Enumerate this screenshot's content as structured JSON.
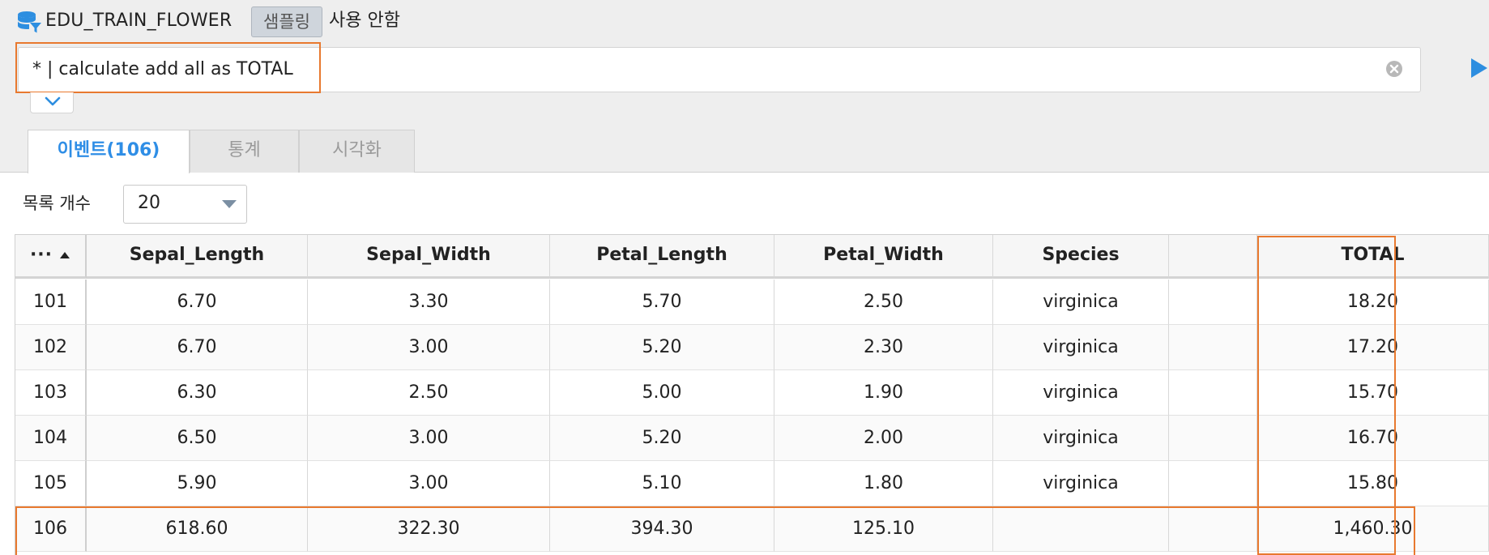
{
  "header": {
    "dataset_name": "EDU_TRAIN_FLOWER",
    "sampling_button": "샘플링",
    "sampling_status": "사용 안함",
    "icon": "database-icon"
  },
  "query": {
    "text": "* | calculate add all as TOTAL",
    "clear_icon": "clear-circle-icon",
    "run_icon": "play-icon",
    "expand_icon": "chevron-down-icon"
  },
  "tabs": [
    {
      "label": "이벤트(106)",
      "active": true
    },
    {
      "label": "통계",
      "active": false
    },
    {
      "label": "시각화",
      "active": false
    }
  ],
  "list_count": {
    "label": "목록 개수",
    "value": "20"
  },
  "table": {
    "index_header": "···",
    "columns": [
      "Sepal_Length",
      "Sepal_Width",
      "Petal_Length",
      "Petal_Width",
      "Species",
      "",
      "TOTAL"
    ],
    "rows": [
      {
        "index": "101",
        "cells": [
          "6.70",
          "3.30",
          "5.70",
          "2.50",
          "virginica",
          "",
          "18.20"
        ]
      },
      {
        "index": "102",
        "cells": [
          "6.70",
          "3.00",
          "5.20",
          "2.30",
          "virginica",
          "",
          "17.20"
        ]
      },
      {
        "index": "103",
        "cells": [
          "6.30",
          "2.50",
          "5.00",
          "1.90",
          "virginica",
          "",
          "15.70"
        ]
      },
      {
        "index": "104",
        "cells": [
          "6.50",
          "3.00",
          "5.20",
          "2.00",
          "virginica",
          "",
          "16.70"
        ]
      },
      {
        "index": "105",
        "cells": [
          "5.90",
          "3.00",
          "5.10",
          "1.80",
          "virginica",
          "",
          "15.80"
        ]
      },
      {
        "index": "106",
        "cells": [
          "618.60",
          "322.30",
          "394.30",
          "125.10",
          "",
          "",
          "1,460.30"
        ]
      }
    ]
  },
  "colors": {
    "highlight": "#e8792f",
    "active_tab": "#2f8ee6",
    "icon_blue": "#2d8ee0"
  }
}
